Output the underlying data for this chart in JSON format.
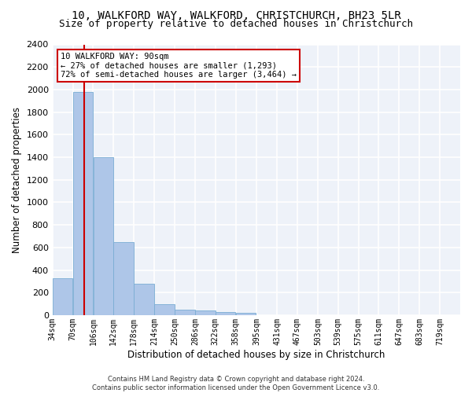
{
  "title1": "10, WALKFORD WAY, WALKFORD, CHRISTCHURCH, BH23 5LR",
  "title2": "Size of property relative to detached houses in Christchurch",
  "xlabel": "Distribution of detached houses by size in Christchurch",
  "ylabel": "Number of detached properties",
  "bar_color": "#aec6e8",
  "bar_edge_color": "#7aadd4",
  "vline_x": 90,
  "vline_color": "#cc0000",
  "annotation_text": "10 WALKFORD WAY: 90sqm\n← 27% of detached houses are smaller (1,293)\n72% of semi-detached houses are larger (3,464) →",
  "annotation_box_color": "#cc0000",
  "ylim": [
    0,
    2400
  ],
  "yticks": [
    0,
    200,
    400,
    600,
    800,
    1000,
    1200,
    1400,
    1600,
    1800,
    2000,
    2200,
    2400
  ],
  "bin_edges": [
    34,
    70,
    106,
    142,
    178,
    214,
    250,
    286,
    322,
    358,
    395,
    431,
    467,
    503,
    539,
    575,
    611,
    647,
    683,
    719,
    755
  ],
  "bar_heights": [
    325,
    1975,
    1400,
    650,
    275,
    100,
    48,
    40,
    28,
    18,
    0,
    0,
    0,
    0,
    0,
    0,
    0,
    0,
    0,
    0
  ],
  "footer_text": "Contains HM Land Registry data © Crown copyright and database right 2024.\nContains public sector information licensed under the Open Government Licence v3.0.",
  "bg_color": "#eef2f9",
  "grid_color": "#ffffff",
  "title1_fontsize": 10,
  "title2_fontsize": 9,
  "tick_label_fontsize": 7,
  "ylabel_fontsize": 8.5,
  "xlabel_fontsize": 8.5,
  "annotation_fontsize": 7.5,
  "footer_fontsize": 6
}
